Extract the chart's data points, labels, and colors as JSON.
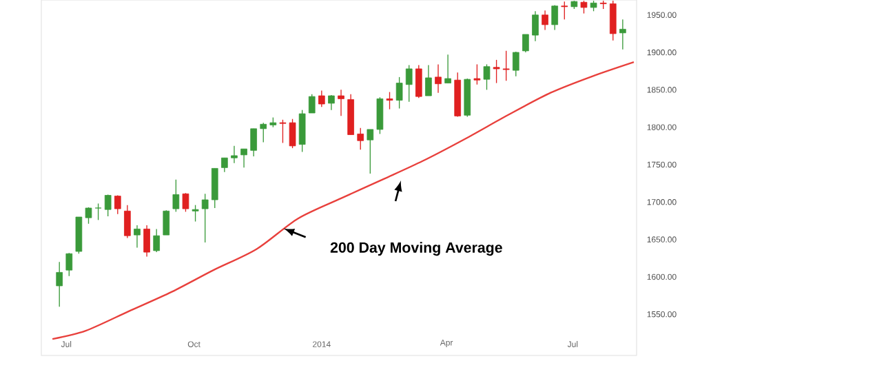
{
  "chart_data": {
    "type": "candlestick",
    "annotations": [
      "200 Day Moving Average"
    ],
    "xlim": [
      "2013-06-13",
      "2014-08-16"
    ],
    "xticks": [
      {
        "value": "2013-07-01",
        "label": "Jul"
      },
      {
        "value": "2013-10-01",
        "label": "Oct"
      },
      {
        "value": "2014-01-01",
        "label": "2014"
      },
      {
        "value": "2014-04-01",
        "label": "Apr"
      },
      {
        "value": "2014-07-01",
        "label": "Jul"
      }
    ],
    "ylim": [
      1495,
      1970
    ],
    "yticks": [
      {
        "value": 1550,
        "label": "1550.00"
      },
      {
        "value": 1600,
        "label": "1600.00"
      },
      {
        "value": 1650,
        "label": "1650.00"
      },
      {
        "value": 1700,
        "label": "1700.00"
      },
      {
        "value": 1750,
        "label": "1750.00"
      },
      {
        "value": 1800,
        "label": "1800.00"
      },
      {
        "value": 1850,
        "label": "1850.00"
      },
      {
        "value": 1900,
        "label": "1900.00"
      },
      {
        "value": 1950,
        "label": "1950.00"
      }
    ],
    "series": [
      {
        "x": [
          "2013-06-26",
          "2013-07-03",
          "2013-07-10",
          "2013-07-17",
          "2013-07-24",
          "2013-07-31",
          "2013-08-07",
          "2013-08-14",
          "2013-08-21",
          "2013-08-28",
          "2013-09-04",
          "2013-09-11",
          "2013-09-18",
          "2013-09-25",
          "2013-10-02",
          "2013-10-09",
          "2013-10-16",
          "2013-10-23",
          "2013-10-30",
          "2013-11-06",
          "2013-11-13",
          "2013-11-20",
          "2013-11-27",
          "2013-12-04",
          "2013-12-11",
          "2013-12-18",
          "2013-12-25",
          "2014-01-01",
          "2014-01-08",
          "2014-01-15",
          "2014-01-22",
          "2014-01-29",
          "2014-02-05",
          "2014-02-12",
          "2014-02-19",
          "2014-02-26",
          "2014-03-05",
          "2014-03-12",
          "2014-03-19",
          "2014-03-26",
          "2014-04-02",
          "2014-04-09",
          "2014-04-16",
          "2014-04-23",
          "2014-04-30",
          "2014-05-07",
          "2014-05-14",
          "2014-05-21",
          "2014-05-28",
          "2014-06-04",
          "2014-06-11",
          "2014-06-18",
          "2014-06-25",
          "2014-07-02",
          "2014-07-09",
          "2014-07-16",
          "2014-07-23",
          "2014-07-30",
          "2014-08-06"
        ],
        "ohlc": [
          [
            1588,
            1620,
            1560,
            1606
          ],
          [
            1609,
            1632,
            1601,
            1631
          ],
          [
            1634,
            1680,
            1631,
            1680
          ],
          [
            1679,
            1693,
            1671,
            1692
          ],
          [
            1692,
            1698,
            1676,
            1692
          ],
          [
            1690,
            1710,
            1681,
            1709
          ],
          [
            1708,
            1709,
            1684,
            1691
          ],
          [
            1688,
            1696,
            1652,
            1655
          ],
          [
            1656,
            1669,
            1639,
            1664
          ],
          [
            1664,
            1669,
            1627,
            1633
          ],
          [
            1635,
            1664,
            1633,
            1655
          ],
          [
            1656,
            1689,
            1656,
            1688
          ],
          [
            1691,
            1730,
            1687,
            1710
          ],
          [
            1711,
            1712,
            1687,
            1691
          ],
          [
            1688,
            1696,
            1674,
            1690
          ],
          [
            1691,
            1711,
            1646,
            1703
          ],
          [
            1703,
            1745,
            1692,
            1745
          ],
          [
            1746,
            1759,
            1740,
            1759
          ],
          [
            1759,
            1775,
            1752,
            1762
          ],
          [
            1763,
            1771,
            1746,
            1771
          ],
          [
            1769,
            1798,
            1761,
            1798
          ],
          [
            1798,
            1806,
            1780,
            1804
          ],
          [
            1803,
            1813,
            1800,
            1806
          ],
          [
            1806,
            1810,
            1779,
            1805
          ],
          [
            1806,
            1811,
            1772,
            1775
          ],
          [
            1777,
            1823,
            1767,
            1818
          ],
          [
            1819,
            1844,
            1819,
            1841
          ],
          [
            1842,
            1849,
            1827,
            1831
          ],
          [
            1832,
            1843,
            1823,
            1842
          ],
          [
            1842,
            1850,
            1815,
            1838
          ],
          [
            1837,
            1844,
            1790,
            1790
          ],
          [
            1791,
            1799,
            1770,
            1782
          ],
          [
            1783,
            1797,
            1738,
            1797
          ],
          [
            1797,
            1840,
            1791,
            1838
          ],
          [
            1838,
            1847,
            1824,
            1836
          ],
          [
            1836,
            1867,
            1825,
            1859
          ],
          [
            1857,
            1883,
            1834,
            1878
          ],
          [
            1878,
            1883,
            1839,
            1841
          ],
          [
            1842,
            1883,
            1842,
            1866
          ],
          [
            1867,
            1884,
            1846,
            1858
          ],
          [
            1859,
            1897,
            1859,
            1865
          ],
          [
            1863,
            1873,
            1814,
            1815
          ],
          [
            1816,
            1865,
            1814,
            1864
          ],
          [
            1865,
            1884,
            1857,
            1863
          ],
          [
            1864,
            1884,
            1850,
            1881
          ],
          [
            1880,
            1890,
            1859,
            1878
          ],
          [
            1878,
            1902,
            1862,
            1877
          ],
          [
            1876,
            1901,
            1868,
            1900
          ],
          [
            1902,
            1924,
            1900,
            1924
          ],
          [
            1923,
            1955,
            1915,
            1950
          ],
          [
            1950,
            1956,
            1930,
            1937
          ],
          [
            1937,
            1963,
            1930,
            1962
          ],
          [
            1962,
            1968,
            1944,
            1961
          ],
          [
            1961,
            1969,
            1958,
            1968
          ],
          [
            1967,
            1969,
            1952,
            1960
          ],
          [
            1960,
            1969,
            1955,
            1966
          ],
          [
            1966,
            1969,
            1958,
            1965
          ],
          [
            1965,
            1969,
            1916,
            1925
          ],
          [
            1926,
            1944,
            1904,
            1931
          ]
        ],
        "colors": [
          "#3a9a3a",
          "#3a9a3a",
          "#3a9a3a",
          "#3a9a3a",
          "#3a9a3a",
          "#3a9a3a",
          "#e02020",
          "#e02020",
          "#3a9a3a",
          "#e02020",
          "#3a9a3a",
          "#3a9a3a",
          "#3a9a3a",
          "#e02020",
          "#3a9a3a",
          "#3a9a3a",
          "#3a9a3a",
          "#3a9a3a",
          "#3a9a3a",
          "#3a9a3a",
          "#3a9a3a",
          "#3a9a3a",
          "#3a9a3a",
          "#e02020",
          "#e02020",
          "#3a9a3a",
          "#3a9a3a",
          "#e02020",
          "#3a9a3a",
          "#e02020",
          "#e02020",
          "#e02020",
          "#3a9a3a",
          "#3a9a3a",
          "#e02020",
          "#3a9a3a",
          "#3a9a3a",
          "#e02020",
          "#3a9a3a",
          "#e02020",
          "#3a9a3a",
          "#e02020",
          "#3a9a3a",
          "#e02020",
          "#3a9a3a",
          "#e02020",
          "#e02020",
          "#3a9a3a",
          "#3a9a3a",
          "#3a9a3a",
          "#e02020",
          "#3a9a3a",
          "#e02020",
          "#3a9a3a",
          "#e02020",
          "#3a9a3a",
          "#e02020",
          "#e02020",
          "#3a9a3a"
        ]
      },
      {
        "type": "line",
        "color": "#e8403c",
        "x": [
          "2013-06-21",
          "2013-07-15",
          "2013-08-15",
          "2013-09-15",
          "2013-10-15",
          "2013-11-15",
          "2013-12-15",
          "2014-01-15",
          "2014-02-15",
          "2014-03-15",
          "2014-04-15",
          "2014-05-15",
          "2014-06-15",
          "2014-07-15",
          "2014-08-14"
        ],
        "values": [
          1517,
          1528,
          1554,
          1580,
          1609,
          1637,
          1678,
          1705,
          1731,
          1755,
          1785,
          1816,
          1846,
          1868,
          1887
        ]
      }
    ]
  }
}
